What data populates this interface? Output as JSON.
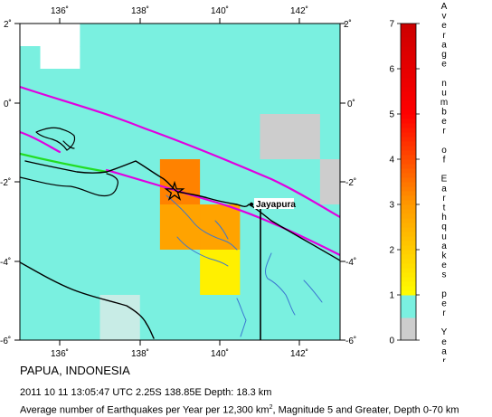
{
  "map": {
    "lon_ticks": [
      "136˚",
      "138˚",
      "140˚",
      "142˚"
    ],
    "lat_ticks": [
      "2˚",
      "0˚",
      "-2˚",
      "-4˚",
      "-6˚"
    ],
    "cell_levels": [
      [
        null,
        null,
        null,
        0.5,
        0.5,
        0.5,
        0.5,
        0.5,
        0.5,
        0.5,
        0.5,
        0.5,
        0.5,
        0.5,
        0.5,
        0.5
      ],
      [
        0.5,
        null,
        null,
        0.5,
        0.5,
        0.5,
        0.5,
        0.5,
        0.5,
        0.5,
        0.5,
        0.5,
        0.5,
        0.5,
        0.5,
        0.5
      ],
      [
        0.5,
        0.5,
        0.5,
        0.5,
        0.5,
        0.5,
        0.5,
        0.5,
        0.5,
        0.5,
        0.5,
        0.5,
        0.5,
        0.5,
        0.5,
        0.5
      ],
      [
        0.5,
        0.5,
        0.5,
        0.5,
        0.5,
        0.5,
        0.5,
        0.5,
        0.5,
        0.5,
        0.5,
        0.5,
        0.5,
        0.5,
        0.5,
        0.5
      ],
      [
        0.5,
        0.5,
        0.5,
        0.5,
        0.5,
        0.5,
        0.5,
        0.5,
        0.5,
        0.5,
        0.5,
        0.5,
        0,
        0,
        0,
        0.5
      ],
      [
        0.5,
        0.5,
        0.5,
        0.5,
        0.5,
        0.5,
        0.5,
        0.5,
        0.5,
        0.5,
        0.5,
        0.5,
        0,
        0,
        0,
        0.5
      ],
      [
        0.5,
        0.5,
        0.5,
        0.5,
        0.5,
        0.5,
        0.5,
        3.3,
        3.3,
        0.5,
        0.5,
        0.5,
        0.5,
        0.5,
        0.5,
        0
      ],
      [
        0.5,
        0.5,
        0.5,
        0.5,
        0.5,
        0.5,
        0.5,
        3.3,
        3.3,
        0.5,
        0.5,
        0.5,
        0.5,
        0.5,
        0.5,
        0
      ],
      [
        0.5,
        0.5,
        0.5,
        0.5,
        0.5,
        0.5,
        0.5,
        2.8,
        2.8,
        2.8,
        2.8,
        0.5,
        0.5,
        0.5,
        0.5,
        0.5
      ],
      [
        0.5,
        0.5,
        0.5,
        0.5,
        0.5,
        0.5,
        0.5,
        2.8,
        2.8,
        2.8,
        2.8,
        0.5,
        0.5,
        0.5,
        0.5,
        0.5
      ],
      [
        0.5,
        0.5,
        0.5,
        0.5,
        0.5,
        0.5,
        0.5,
        0.5,
        0.5,
        1.3,
        1.3,
        0.5,
        0.5,
        0.5,
        0.5,
        0.5
      ],
      [
        0.5,
        0.5,
        0.5,
        0.5,
        0.5,
        0.5,
        0.5,
        0.5,
        0.5,
        1.3,
        1.3,
        0.5,
        0.5,
        0.5,
        0.5,
        0.5
      ],
      [
        0.5,
        0.5,
        0.5,
        0.5,
        0.25,
        0.25,
        0.5,
        0.5,
        0.5,
        0.5,
        0.5,
        0.5,
        0.5,
        0.5,
        0.5,
        0.5
      ],
      [
        0.5,
        0.5,
        0.5,
        0.5,
        0.25,
        0.25,
        0.5,
        0.5,
        0.5,
        0.5,
        0.5,
        0.5,
        0.5,
        0.5,
        0.5,
        0.5
      ],
      [
        null,
        null,
        null,
        null,
        null,
        null,
        null,
        null,
        null,
        null,
        null,
        null,
        0,
        0,
        null,
        null
      ]
    ],
    "city_label": "Jayapura",
    "epicenter_symbol": "star-icon"
  },
  "legend": {
    "title": "Average number of Earthquakes per Year",
    "ticks": [
      "0",
      "1",
      "2",
      "3",
      "4",
      "5",
      "6",
      "7"
    ],
    "min": 0,
    "max": 7
  },
  "colors": {
    "ocean": "#ffffff",
    "coastline": "#000000",
    "rivers": "#3a76d0",
    "plate_boundary": "#e000e0",
    "fault_secondary": "#22dd22",
    "no_data_gray": "#cdcdcd",
    "ramp": [
      "#7af0e0",
      "#ffff00",
      "#ff9900",
      "#ff0000",
      "#cc0000"
    ]
  },
  "captions": {
    "region": "PAPUA, INDONESIA",
    "event": "2011 10 11 13:05:47 UTC 2.25S 138.85E Depth: 18.3 km",
    "note_pre": "Average number of Earthquakes per Year per 12,300 km",
    "note_sup": "2",
    "note_post": ", Magnitude 5 and Greater, Depth 0-70 km"
  }
}
